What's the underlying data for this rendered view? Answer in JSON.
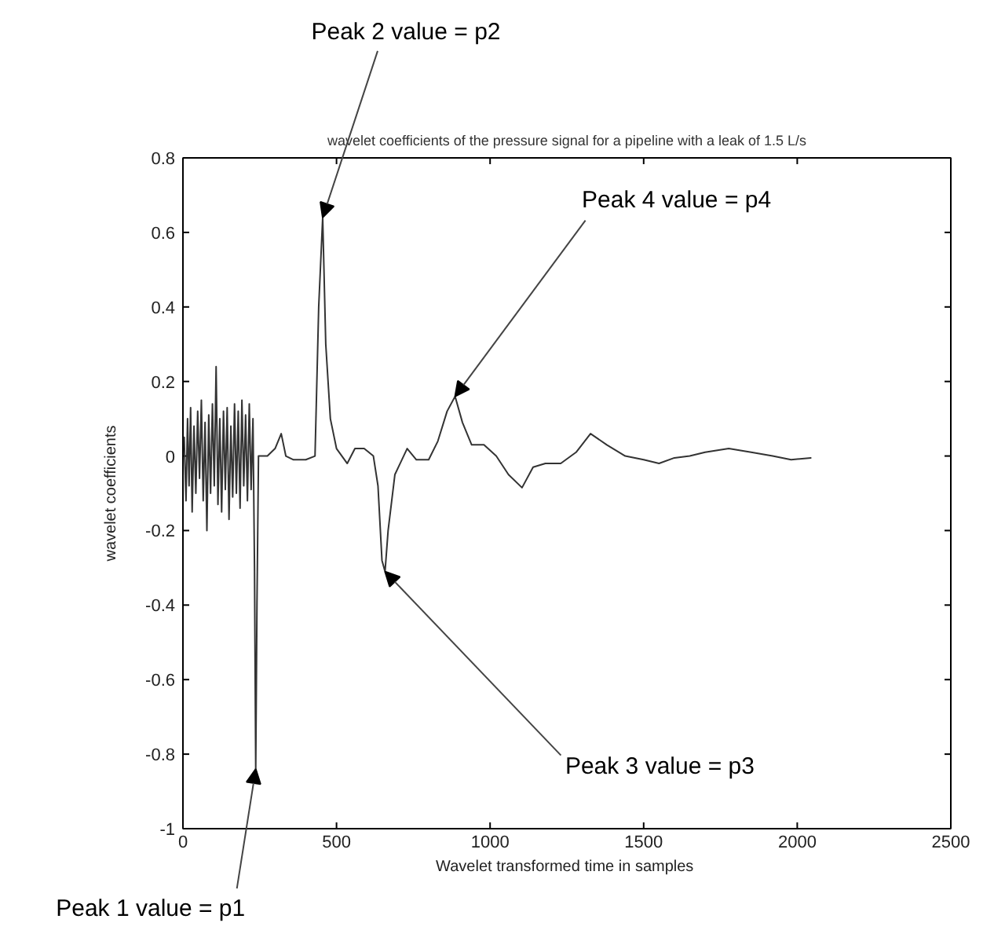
{
  "chart_data": {
    "type": "line",
    "title": "wavelet coefficients of the pressure signal for a pipeline with a leak of 1.5 L/s",
    "xlabel": "Wavelet transformed  time in samples",
    "ylabel": "wavelet coefficients",
    "x": [
      4,
      10,
      15,
      20,
      25,
      30,
      36,
      42,
      48,
      54,
      60,
      66,
      72,
      78,
      84,
      90,
      96,
      102,
      108,
      114,
      120,
      126,
      132,
      138,
      144,
      150,
      156,
      162,
      168,
      174,
      180,
      186,
      192,
      198,
      204,
      210,
      216,
      222,
      228,
      233,
      237,
      241,
      246,
      252,
      275,
      300,
      320,
      335,
      360,
      400,
      430,
      442,
      455,
      465,
      480,
      500,
      535,
      560,
      590,
      620,
      635,
      648,
      658,
      668,
      690,
      730,
      760,
      800,
      830,
      860,
      886,
      910,
      940,
      980,
      1020,
      1060,
      1104,
      1140,
      1180,
      1230,
      1280,
      1327,
      1380,
      1440,
      1500,
      1550,
      1600,
      1650,
      1700,
      1777,
      1850,
      1920,
      1980,
      2044
    ],
    "series": [
      {
        "color": "#333333",
        "values": [
          0.05,
          -0.12,
          0.1,
          -0.08,
          0.13,
          -0.15,
          0.08,
          -0.1,
          0.12,
          -0.06,
          0.15,
          -0.12,
          0.09,
          -0.2,
          0.11,
          -0.1,
          0.14,
          -0.08,
          0.24,
          -0.13,
          0.1,
          -0.15,
          0.12,
          -0.09,
          0.13,
          -0.17,
          0.08,
          -0.11,
          0.14,
          -0.1,
          0.12,
          -0.14,
          0.15,
          -0.08,
          0.11,
          -0.12,
          0.14,
          -0.09,
          0.1,
          -0.3,
          -0.84,
          -0.4,
          0.0,
          0.0,
          0.0,
          0.02,
          0.06,
          0.0,
          -0.01,
          -0.01,
          0.0,
          0.4,
          0.64,
          0.3,
          0.1,
          0.02,
          -0.02,
          0.02,
          0.02,
          0.0,
          -0.08,
          -0.28,
          -0.31,
          -0.2,
          -0.05,
          0.02,
          -0.01,
          -0.01,
          0.04,
          0.12,
          0.16,
          0.09,
          0.03,
          0.03,
          0.0,
          -0.05,
          -0.085,
          -0.03,
          -0.02,
          -0.02,
          0.01,
          0.06,
          0.03,
          0.0,
          -0.01,
          -0.02,
          -0.005,
          0.0,
          0.01,
          0.02,
          0.01,
          0.0,
          -0.01,
          -0.005
        ]
      }
    ],
    "xlim": [
      0,
      2500
    ],
    "ylim": [
      -1,
      0.8
    ],
    "xticks": [
      0,
      500,
      1000,
      1500,
      2000,
      2500
    ],
    "yticks": [
      -1,
      -0.8,
      -0.6,
      -0.4,
      -0.2,
      0,
      0.2,
      0.4,
      0.6,
      0.8
    ],
    "grid": false,
    "line_style": "solid",
    "annotations": [
      {
        "text": "Peak 1 value = p1",
        "x": 237,
        "y": -0.84
      },
      {
        "text": "Peak 2 value = p2",
        "x": 455,
        "y": 0.64
      },
      {
        "text": "Peak 3 value = p3",
        "x": 658,
        "y": -0.31
      },
      {
        "text": "Peak 4 value = p4",
        "x": 886,
        "y": 0.16
      }
    ]
  }
}
